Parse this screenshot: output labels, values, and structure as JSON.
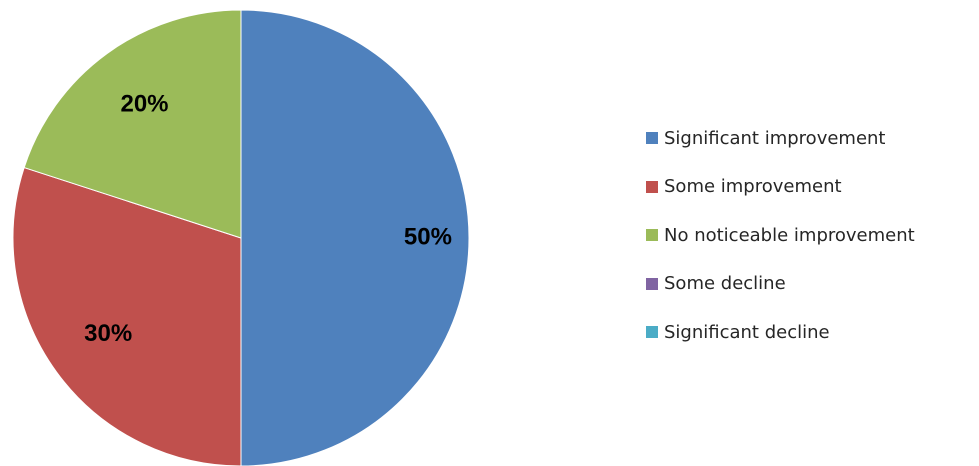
{
  "chart_data": {
    "type": "pie",
    "title": "",
    "slices": [
      {
        "label": "Significant improvement",
        "value": 50,
        "value_label": "50%",
        "color": "#4F81BD"
      },
      {
        "label": "Some improvement",
        "value": 30,
        "value_label": "30%",
        "color": "#C0504D"
      },
      {
        "label": "No noticeable improvement",
        "value": 20,
        "value_label": "20%",
        "color": "#9BBB59"
      },
      {
        "label": "Some decline",
        "value": 0,
        "value_label": "",
        "color": "#8064A2"
      },
      {
        "label": "Significant decline",
        "value": 0,
        "value_label": "",
        "color": "#4BACC6"
      }
    ],
    "legend_position": "right"
  }
}
